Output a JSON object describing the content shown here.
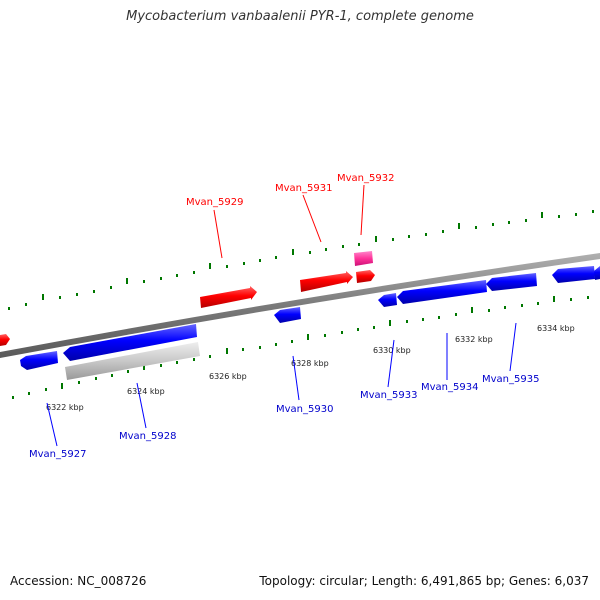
{
  "title": "Mycobacterium vanbaalenii PYR-1, complete genome",
  "footer": {
    "accession": "Accession: NC_008726",
    "stats": "Topology: circular; Length: 6,491,865 bp; Genes: 6,037"
  },
  "colors": {
    "forward_gene": "#ff0000",
    "reverse_gene": "#0000ff",
    "highlight_gene": "#ff3399",
    "pseudo_gene": "#bbbbbb",
    "backbone": "#808080",
    "ticks": "#007700"
  },
  "kbp_ticks": [
    "6322 kbp",
    "6324 kbp",
    "6326 kbp",
    "6328 kbp",
    "6330 kbp",
    "6332 kbp",
    "6334 kbp"
  ],
  "forward_labels": [
    "Mvan_5929",
    "Mvan_5931",
    "Mvan_5932"
  ],
  "reverse_labels": [
    "Mvan_5927",
    "Mvan_5928",
    "Mvan_5930",
    "Mvan_5933",
    "Mvan_5934",
    "Mvan_5935"
  ]
}
